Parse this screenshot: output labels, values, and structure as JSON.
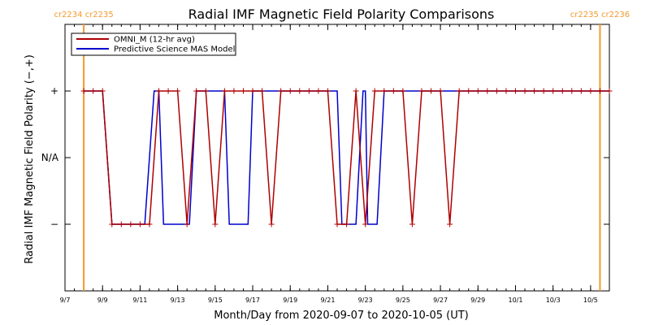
{
  "chart_data": {
    "type": "line",
    "title": "Radial IMF Magnetic Field Polarity Comparisons",
    "xlabel": "Month/Day from 2020-09-07 to 2020-10-05 (UT)",
    "ylabel": "Radial IMF Magnetic Field Polarity (−,+)",
    "x_range": [
      "2020-09-07 00:00",
      "2020-10-06 00:00"
    ],
    "x_ticks": [
      {
        "at": "2020-09-07",
        "label": "9/7"
      },
      {
        "at": "2020-09-09",
        "label": "9/9"
      },
      {
        "at": "2020-09-11",
        "label": "9/11"
      },
      {
        "at": "2020-09-13",
        "label": "9/13"
      },
      {
        "at": "2020-09-15",
        "label": "9/15"
      },
      {
        "at": "2020-09-17",
        "label": "9/17"
      },
      {
        "at": "2020-09-19",
        "label": "9/19"
      },
      {
        "at": "2020-09-21",
        "label": "9/21"
      },
      {
        "at": "2020-09-23",
        "label": "9/23"
      },
      {
        "at": "2020-09-25",
        "label": "9/25"
      },
      {
        "at": "2020-09-27",
        "label": "9/27"
      },
      {
        "at": "2020-09-29",
        "label": "9/29"
      },
      {
        "at": "2020-10-01",
        "label": "10/1"
      },
      {
        "at": "2020-10-03",
        "label": "10/3"
      },
      {
        "at": "2020-10-05",
        "label": "10/5"
      }
    ],
    "y_categories": [
      {
        "value": 1,
        "label": "+"
      },
      {
        "value": 0,
        "label": "N/A"
      },
      {
        "value": -1,
        "label": "−"
      }
    ],
    "y_range": [
      -2,
      2
    ],
    "carrington_rotations": [
      {
        "at": "2020-09-08 00:00",
        "label": "cr2234 cr2235"
      },
      {
        "at": "2020-10-05 12:00",
        "label": "cr2235 cr2236"
      }
    ],
    "legend_position": "top-left",
    "series": [
      {
        "name": "OMNI_M (12-hr avg)",
        "color": "#b00000",
        "markers": true,
        "points": [
          [
            "2020-09-08 00:00",
            1
          ],
          [
            "2020-09-08 12:00",
            1
          ],
          [
            "2020-09-09 00:00",
            1
          ],
          [
            "2020-09-09 12:00",
            -1
          ],
          [
            "2020-09-10 00:00",
            -1
          ],
          [
            "2020-09-10 12:00",
            -1
          ],
          [
            "2020-09-11 00:00",
            -1
          ],
          [
            "2020-09-11 12:00",
            -1
          ],
          [
            "2020-09-12 00:00",
            1
          ],
          [
            "2020-09-12 12:00",
            1
          ],
          [
            "2020-09-13 00:00",
            1
          ],
          [
            "2020-09-13 12:00",
            -1
          ],
          [
            "2020-09-14 00:00",
            1
          ],
          [
            "2020-09-14 12:00",
            1
          ],
          [
            "2020-09-15 00:00",
            -1
          ],
          [
            "2020-09-15 12:00",
            1
          ],
          [
            "2020-09-16 00:00",
            1
          ],
          [
            "2020-09-16 12:00",
            1
          ],
          [
            "2020-09-17 00:00",
            1
          ],
          [
            "2020-09-17 12:00",
            1
          ],
          [
            "2020-09-18 00:00",
            -1
          ],
          [
            "2020-09-18 12:00",
            1
          ],
          [
            "2020-09-19 00:00",
            1
          ],
          [
            "2020-09-19 12:00",
            1
          ],
          [
            "2020-09-20 00:00",
            1
          ],
          [
            "2020-09-20 12:00",
            1
          ],
          [
            "2020-09-21 00:00",
            1
          ],
          [
            "2020-09-21 12:00",
            -1
          ],
          [
            "2020-09-22 00:00",
            -1
          ],
          [
            "2020-09-22 12:00",
            1
          ],
          [
            "2020-09-23 00:00",
            -1
          ],
          [
            "2020-09-23 12:00",
            1
          ],
          [
            "2020-09-24 00:00",
            1
          ],
          [
            "2020-09-24 12:00",
            1
          ],
          [
            "2020-09-25 00:00",
            1
          ],
          [
            "2020-09-25 12:00",
            -1
          ],
          [
            "2020-09-26 00:00",
            1
          ],
          [
            "2020-09-26 12:00",
            1
          ],
          [
            "2020-09-27 00:00",
            1
          ],
          [
            "2020-09-27 12:00",
            -1
          ],
          [
            "2020-09-28 00:00",
            1
          ],
          [
            "2020-09-28 12:00",
            1
          ],
          [
            "2020-09-29 00:00",
            1
          ],
          [
            "2020-09-29 12:00",
            1
          ],
          [
            "2020-09-30 00:00",
            1
          ],
          [
            "2020-09-30 12:00",
            1
          ],
          [
            "2020-10-01 00:00",
            1
          ],
          [
            "2020-10-01 12:00",
            1
          ],
          [
            "2020-10-02 00:00",
            1
          ],
          [
            "2020-10-02 12:00",
            1
          ],
          [
            "2020-10-03 00:00",
            1
          ],
          [
            "2020-10-03 12:00",
            1
          ],
          [
            "2020-10-04 00:00",
            1
          ],
          [
            "2020-10-04 12:00",
            1
          ],
          [
            "2020-10-05 00:00",
            1
          ],
          [
            "2020-10-05 12:00",
            1
          ],
          [
            "2020-10-06 00:00",
            1
          ]
        ]
      },
      {
        "name": "Predictive Science MAS Model",
        "color": "#0000cc",
        "markers": false,
        "points": [
          [
            "2020-09-08 00:00",
            1
          ],
          [
            "2020-09-09 00:00",
            1
          ],
          [
            "2020-09-09 12:00",
            -1
          ],
          [
            "2020-09-11 06:00",
            -1
          ],
          [
            "2020-09-11 18:00",
            1
          ],
          [
            "2020-09-12 00:00",
            1
          ],
          [
            "2020-09-12 06:00",
            -1
          ],
          [
            "2020-09-13 15:00",
            -1
          ],
          [
            "2020-09-14 00:00",
            1
          ],
          [
            "2020-09-15 12:00",
            1
          ],
          [
            "2020-09-15 18:00",
            -1
          ],
          [
            "2020-09-16 18:00",
            -1
          ],
          [
            "2020-09-17 00:00",
            1
          ],
          [
            "2020-09-21 12:00",
            1
          ],
          [
            "2020-09-21 18:00",
            -1
          ],
          [
            "2020-09-22 12:00",
            -1
          ],
          [
            "2020-09-22 21:00",
            1
          ],
          [
            "2020-09-23 00:00",
            1
          ],
          [
            "2020-09-23 03:00",
            -1
          ],
          [
            "2020-09-23 15:00",
            -1
          ],
          [
            "2020-09-24 00:00",
            1
          ],
          [
            "2020-10-06 00:00",
            1
          ]
        ]
      }
    ]
  }
}
